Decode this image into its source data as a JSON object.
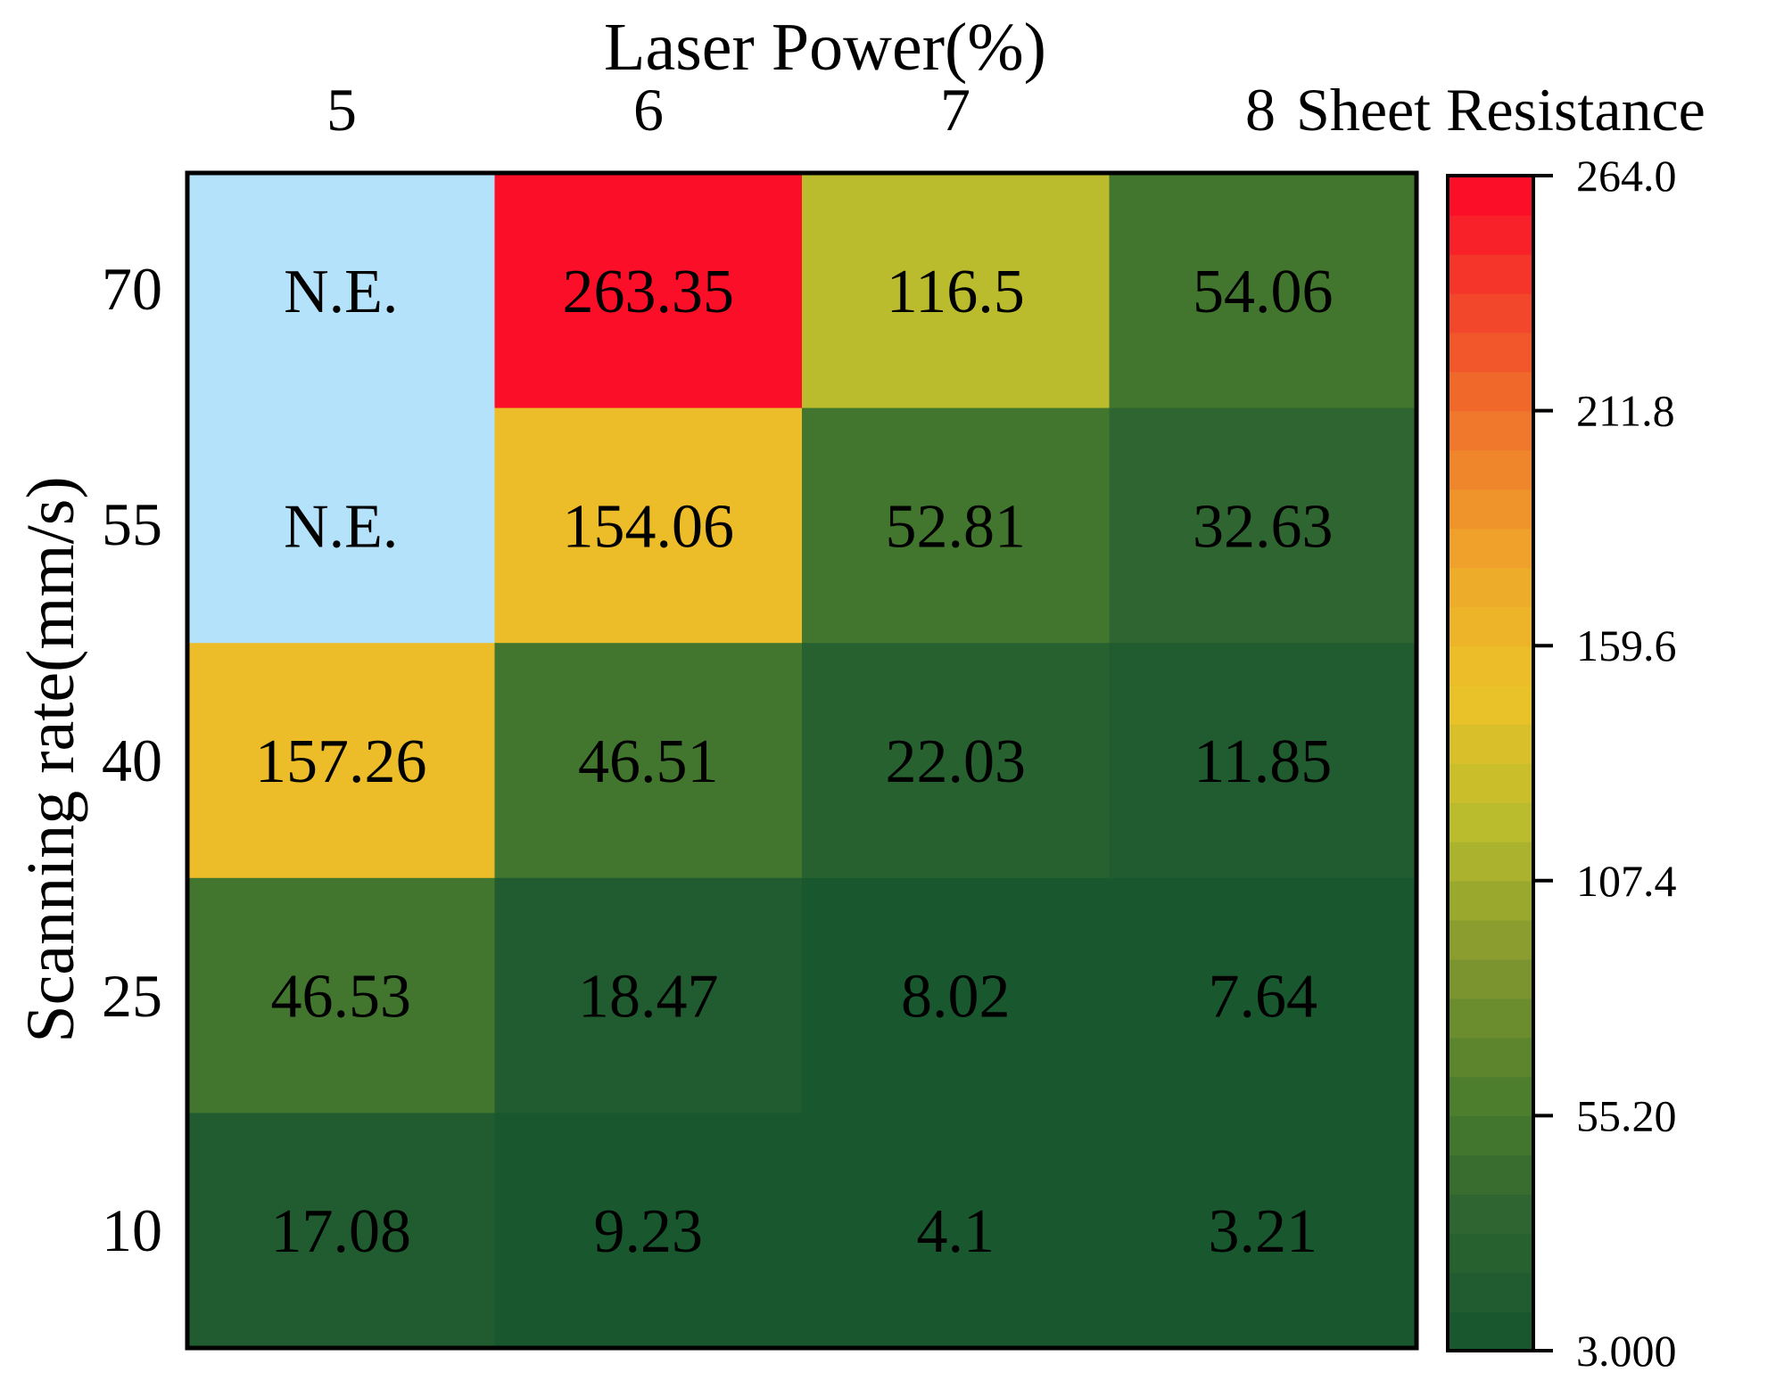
{
  "chart_data": {
    "type": "heatmap",
    "title": "Laser Power(%)",
    "xlabel": "Laser Power(%)",
    "ylabel": "Scanning rate(mm/s)",
    "colorbar_label": "Sheet Resistance",
    "x_categories": [
      "5",
      "6",
      "7",
      "8"
    ],
    "y_categories": [
      "70",
      "55",
      "40",
      "25",
      "10"
    ],
    "values": [
      [
        null,
        263.35,
        116.5,
        54.06
      ],
      [
        null,
        154.06,
        52.81,
        32.63
      ],
      [
        157.26,
        46.51,
        22.03,
        11.85
      ],
      [
        46.53,
        18.47,
        8.02,
        7.64
      ],
      [
        17.08,
        9.23,
        4.1,
        3.21
      ]
    ],
    "cell_labels": [
      [
        "N.E.",
        "263.35",
        "116.5",
        "54.06"
      ],
      [
        "N.E.",
        "154.06",
        "52.81",
        "32.63"
      ],
      [
        "157.26",
        "46.51",
        "22.03",
        "11.85"
      ],
      [
        "46.53",
        "18.47",
        "8.02",
        "7.64"
      ],
      [
        "17.08",
        "9.23",
        "4.1",
        "3.21"
      ]
    ],
    "missing_label": "N.E.",
    "colorbar": {
      "min": 3.0,
      "max": 264.0,
      "ticks": [
        "264.0",
        "211.8",
        "159.6",
        "107.4",
        "55.20",
        "3.000"
      ],
      "tick_values": [
        264.0,
        211.8,
        159.6,
        107.4,
        55.2,
        3.0
      ],
      "levels": 30
    }
  },
  "colors": {
    "missing": "#b5e2fb",
    "stops": [
      "#16562e",
      "#2d6430",
      "#4e7f2d",
      "#84982f",
      "#b8bc2d",
      "#ebc228",
      "#efa82b",
      "#f07b2c",
      "#f2442a",
      "#fc0428"
    ]
  }
}
